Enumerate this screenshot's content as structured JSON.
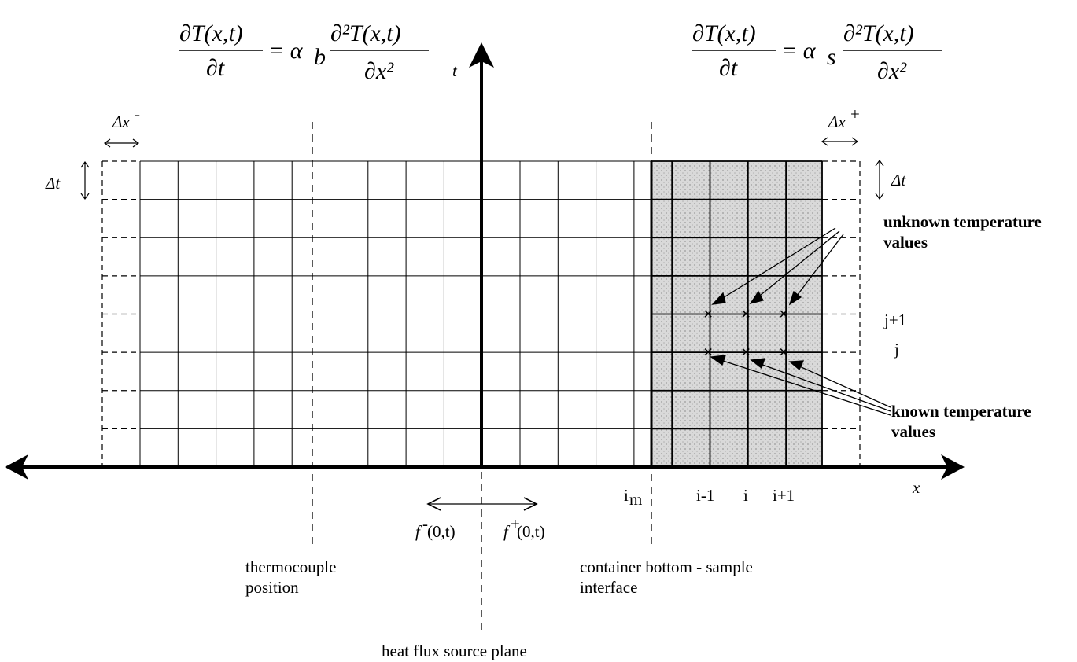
{
  "equations": {
    "left": {
      "lhs_num": "∂T(x,t)",
      "lhs_den": "∂t",
      "coef": "= α",
      "coef_sub": "b",
      "rhs_num": "∂²T(x,t)",
      "rhs_den": "∂x²"
    },
    "right": {
      "lhs_num": "∂T(x,t)",
      "lhs_den": "∂t",
      "coef": "= α",
      "coef_sub": "s",
      "rhs_num": "∂²T(x,t)",
      "rhs_den": "∂x²"
    }
  },
  "axes": {
    "t_label": "t",
    "x_label": "x"
  },
  "dimensions": {
    "dx_minus": {
      "base": "Δx",
      "sup": "-"
    },
    "dx_plus": {
      "base": "Δx",
      "sup": "+"
    },
    "dt_left": "Δt",
    "dt_right": "Δt"
  },
  "indices": {
    "i_m": {
      "base": "i",
      "sub": "m"
    },
    "i_minus_1": "i-1",
    "i": "i",
    "i_plus_1": "i+1",
    "j_plus_1": "j+1",
    "j": "j"
  },
  "flux": {
    "minus": {
      "f": "f",
      "sup": "-",
      "arg": "(0,t)"
    },
    "plus": {
      "f": "f",
      "sup": "+",
      "arg": "(0,t)"
    }
  },
  "annotations": {
    "unknown_line1": "unknown temperature",
    "unknown_line2": "values",
    "known_line1": "known temperature",
    "known_line2": "values",
    "thermocouple_line1": "thermocouple",
    "thermocouple_line2": "position",
    "interface_line1": "container bottom - sample",
    "interface_line2": "interface",
    "source_plane": "heat flux source plane"
  },
  "colors": {
    "ink": "#000000",
    "sample_fill": "#d4d4d4",
    "background": "#ffffff"
  }
}
